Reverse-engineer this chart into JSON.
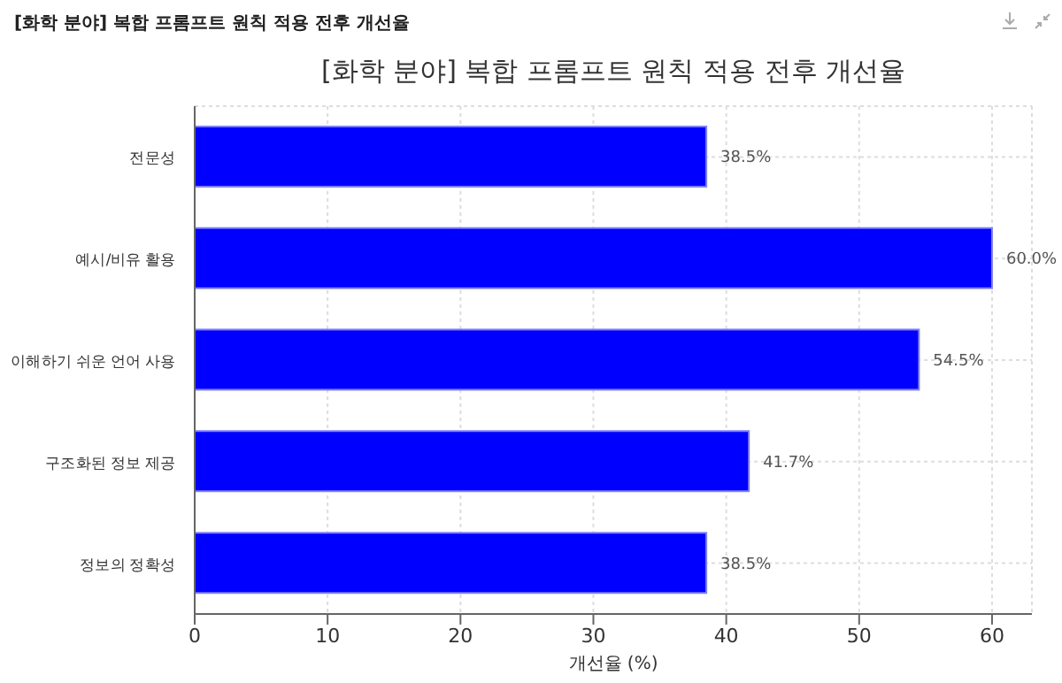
{
  "chart_data": {
    "type": "bar",
    "orientation": "horizontal",
    "title": "[화학 분야] 복합 프롬프트 원칙 적용 전후 개선율",
    "annotations": [
      "[화학 분야] 복합 프롬프트 원칙 적용 전후 개선율"
    ],
    "xlabel": "개선율 (%)",
    "categories": [
      "전문성",
      "예시/비유 활용",
      "이해하기 쉬운 언어 사용",
      "구조화된 정보 제공",
      "정보의 정확성"
    ],
    "values": [
      38.5,
      60.0,
      54.5,
      41.7,
      38.5
    ],
    "value_labels": [
      "38.5%",
      "60.0%",
      "54.5%",
      "41.7%",
      "38.5%"
    ],
    "color": "#0000ff",
    "xlim": [
      0,
      63
    ],
    "xticks": [
      0,
      10,
      20,
      30,
      40,
      50,
      60
    ],
    "grid": true
  }
}
